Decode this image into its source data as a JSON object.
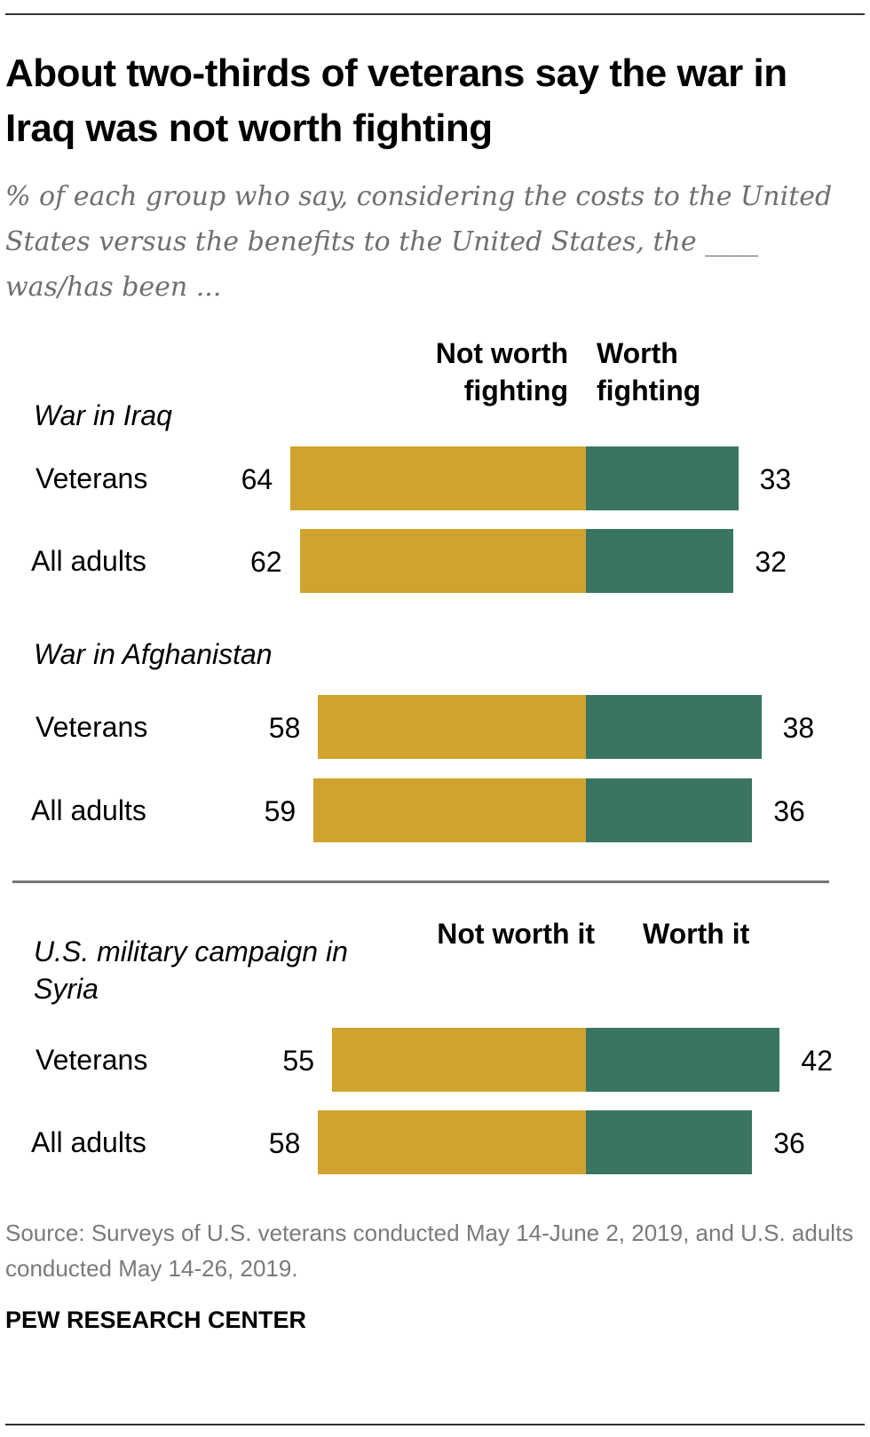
{
  "title": "About two-thirds of veterans say the war in Iraq was not worth fighting",
  "subtitle": "% of each group who say, considering the costs to the United States versus the benefits to the United States, the ____ was/has been ...",
  "source": "Source: Surveys of U.S. veterans conducted May 14-June 2, 2019, and U.S. adults conducted May 14-26, 2019.",
  "brand": "PEW RESEARCH CENTER",
  "colors": {
    "negative": "#d0a32e",
    "positive": "#3a7563"
  },
  "chart_data": {
    "type": "bar",
    "orientation": "horizontal-diverging",
    "groups": [
      {
        "name": "War in Iraq",
        "neg_label": "Not worth fighting",
        "pos_label": "Worth fighting",
        "rows": [
          {
            "label": "Veterans",
            "neg": 64,
            "pos": 33
          },
          {
            "label": "All adults",
            "neg": 62,
            "pos": 32
          }
        ]
      },
      {
        "name": "War in Afghanistan",
        "rows": [
          {
            "label": "Veterans",
            "neg": 58,
            "pos": 38
          },
          {
            "label": "All adults",
            "neg": 59,
            "pos": 36
          }
        ]
      },
      {
        "name": "U.S. military campaign in Syria",
        "neg_label": "Not worth it",
        "pos_label": "Worth it",
        "rows": [
          {
            "label": "Veterans",
            "neg": 55,
            "pos": 42
          },
          {
            "label": "All adults",
            "neg": 58,
            "pos": 36
          }
        ]
      }
    ]
  }
}
